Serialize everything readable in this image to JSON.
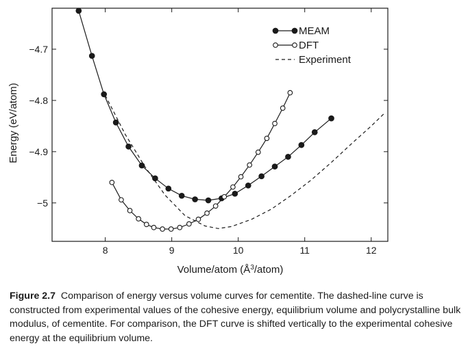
{
  "chart_data": {
    "type": "line",
    "xlabel": "Volume/atom (Å³/atom)",
    "xlabel_parts": {
      "prefix": "Volume/atom (Å",
      "superscript": "3",
      "suffix": "/atom)"
    },
    "ylabel": "Energy (eV/atom)",
    "xlim": [
      7.2,
      12.25
    ],
    "ylim": [
      -5.075,
      -4.62
    ],
    "x_ticks": [
      8,
      9,
      10,
      11,
      12
    ],
    "x_tick_labels": [
      "8",
      "9",
      "10",
      "11",
      "12"
    ],
    "y_ticks": [
      -4.7,
      -4.8,
      -4.9,
      -5.0
    ],
    "y_tick_labels": [
      "−4.7",
      "−4.8",
      "−4.9",
      "−5"
    ],
    "grid": false,
    "legend_position": "top-right",
    "series": [
      {
        "name": "MEAM",
        "style": "line-filled-markers",
        "x": [
          7.6,
          7.8,
          7.98,
          8.16,
          8.35,
          8.55,
          8.75,
          8.95,
          9.15,
          9.35,
          9.55,
          9.75,
          9.95,
          10.15,
          10.35,
          10.55,
          10.75,
          10.95,
          11.15,
          11.4
        ],
        "y": [
          -4.625,
          -4.713,
          -4.788,
          -4.843,
          -4.89,
          -4.927,
          -4.952,
          -4.972,
          -4.986,
          -4.993,
          -4.995,
          -4.991,
          -4.982,
          -4.966,
          -4.948,
          -4.929,
          -4.91,
          -4.887,
          -4.862,
          -4.835
        ]
      },
      {
        "name": "DFT",
        "style": "line-open-markers",
        "x": [
          8.1,
          8.24,
          8.37,
          8.5,
          8.62,
          8.73,
          8.86,
          8.99,
          9.12,
          9.26,
          9.4,
          9.53,
          9.66,
          9.79,
          9.92,
          10.04,
          10.17,
          10.3,
          10.43,
          10.55,
          10.67,
          10.78
        ],
        "y": [
          -4.96,
          -4.994,
          -5.015,
          -5.031,
          -5.042,
          -5.048,
          -5.051,
          -5.051,
          -5.048,
          -5.041,
          -5.032,
          -5.02,
          -5.006,
          -4.988,
          -4.969,
          -4.949,
          -4.926,
          -4.901,
          -4.874,
          -4.845,
          -4.815,
          -4.785
        ]
      },
      {
        "name": "Experiment",
        "style": "dashed",
        "x": [
          8.0,
          8.3,
          8.6,
          8.9,
          9.2,
          9.5,
          9.7,
          9.9,
          10.2,
          10.5,
          10.8,
          11.1,
          11.4,
          11.7,
          12.0,
          12.2
        ],
        "y": [
          -4.79,
          -4.866,
          -4.93,
          -4.985,
          -5.025,
          -5.045,
          -5.05,
          -5.046,
          -5.032,
          -5.012,
          -4.985,
          -4.955,
          -4.921,
          -4.885,
          -4.85,
          -4.825
        ]
      }
    ]
  },
  "caption": {
    "label": "Figure 2.7",
    "text": "Comparison of energy versus volume curves for cementite. The dashed-line curve is constructed from experimental values of the cohesive energy, equilibrium volume and polycrystalline bulk modulus, of cementite. For comparison, the DFT curve is shifted vertically to the experimental cohesive energy at the equilibrium volume."
  }
}
